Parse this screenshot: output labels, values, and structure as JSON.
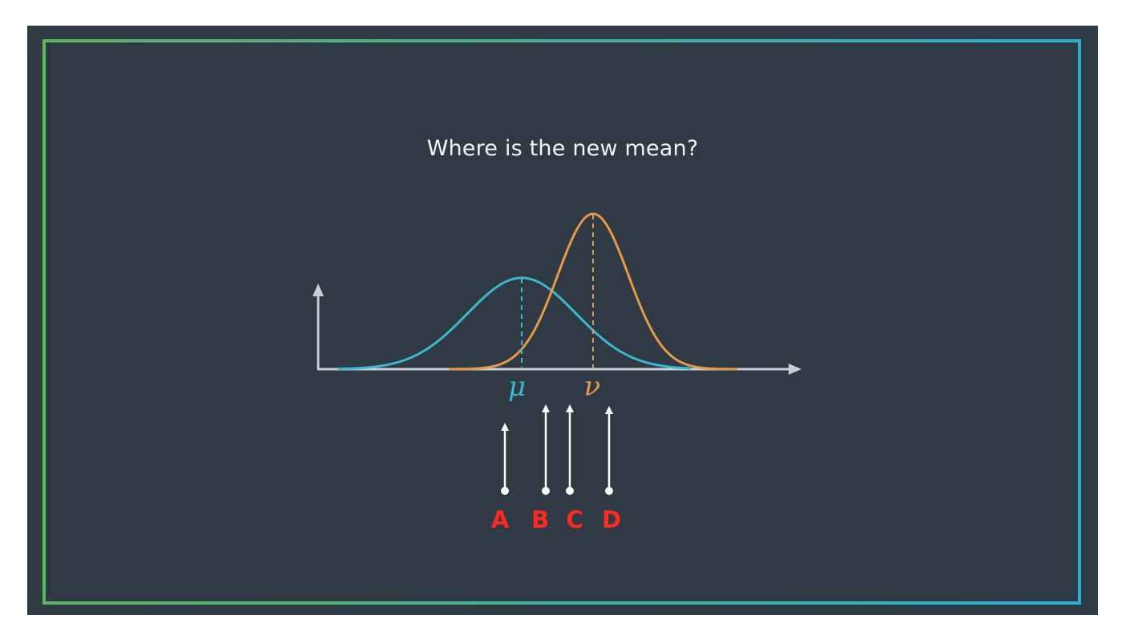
{
  "title": "Where is the new mean?",
  "labels": {
    "mu": "μ",
    "nu": "ν"
  },
  "options": [
    {
      "letter": "A"
    },
    {
      "letter": "B"
    },
    {
      "letter": "C"
    },
    {
      "letter": "D"
    }
  ],
  "colors": {
    "background": "#2f3a44",
    "border_left": "#5cb85c",
    "border_right": "#2ab0d6",
    "mu_curve": "#3bb7cf",
    "nu_curve": "#e49a48",
    "axis": "#c9cfd4",
    "option_arrow": "#ffffff",
    "option_label": "#ff2a1f",
    "title": "#f2f4f5"
  }
}
